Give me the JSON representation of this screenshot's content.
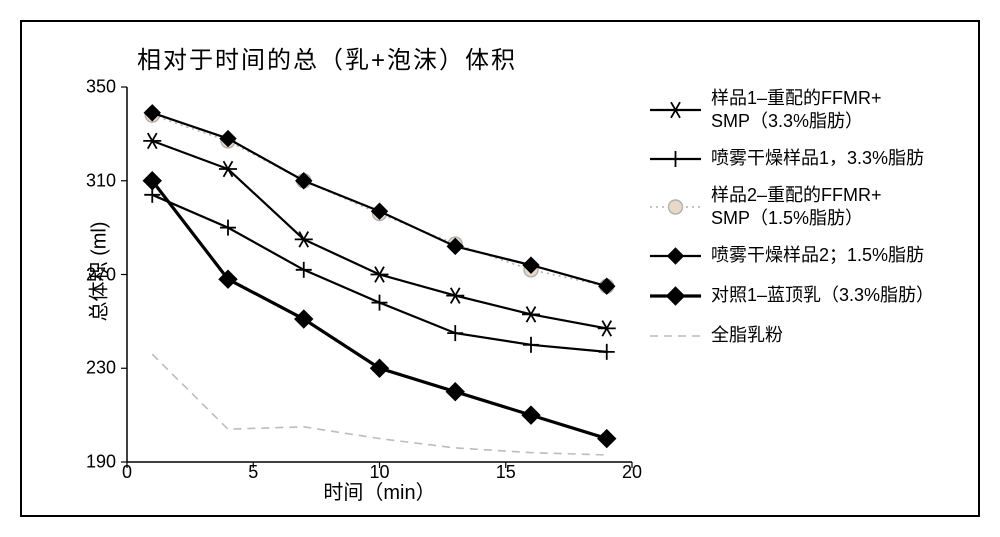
{
  "chart": {
    "type": "line",
    "title": "相对于时间的总（乳+泡沫）体积",
    "title_fontsize": 24,
    "xlabel": "时间（min）",
    "ylabel": "总体积 (ml)",
    "label_fontsize": 20,
    "tick_fontsize": 18,
    "background_color": "#ffffff",
    "border_color": "#000000",
    "xlim": [
      0,
      20
    ],
    "ylim": [
      190,
      350
    ],
    "xticks": [
      0,
      5,
      10,
      15,
      20
    ],
    "yticks": [
      190,
      230,
      270,
      310,
      350
    ],
    "xtick_labels": [
      "0",
      "5",
      "10",
      "15",
      "20"
    ],
    "ytick_labels": [
      "190",
      "230",
      "270",
      "310",
      "350"
    ],
    "grid": false,
    "tick_len": 6,
    "series": [
      {
        "label": "样品1–重配的FFMR+\nSMP（3.3%脂肪）",
        "marker": "asterisk",
        "line_dash": "none",
        "color": "#000000",
        "line_width": 2.2,
        "marker_size": 9,
        "x": [
          1,
          4,
          7,
          10,
          13,
          16,
          19
        ],
        "y": [
          327,
          315,
          285,
          270,
          261,
          253,
          247
        ]
      },
      {
        "label": "喷雾干燥样品1，3.3%脂肪",
        "marker": "plus",
        "line_dash": "none",
        "color": "#000000",
        "line_width": 2.2,
        "marker_size": 8,
        "x": [
          1,
          4,
          7,
          10,
          13,
          16,
          19
        ],
        "y": [
          304,
          290,
          272,
          258,
          245,
          240,
          237
        ]
      },
      {
        "label": "样品2–重配的FFMR+\nSMP（1.5%脂肪）",
        "marker": "circle-open",
        "line_dash": "dot",
        "color": "#b0b0b0",
        "line_width": 1.6,
        "marker_size": 7,
        "marker_fill": "#e8d8c8",
        "x": [
          1,
          4,
          7,
          10,
          13,
          16,
          19
        ],
        "y": [
          338,
          327,
          310,
          296,
          283,
          272,
          265
        ]
      },
      {
        "label": "喷雾干燥样品2；1.5%脂肪",
        "marker": "diamond",
        "line_dash": "none",
        "color": "#000000",
        "line_width": 2.2,
        "marker_size": 8,
        "x": [
          1,
          4,
          7,
          10,
          13,
          16,
          19
        ],
        "y": [
          339,
          328,
          310,
          297,
          282,
          274,
          265
        ]
      },
      {
        "label": "对照1–蓝顶乳（3.3%脂肪）",
        "marker": "diamond",
        "line_dash": "none",
        "color": "#000000",
        "line_width": 3.2,
        "marker_size": 9,
        "x": [
          1,
          4,
          7,
          10,
          13,
          16,
          19
        ],
        "y": [
          310,
          268,
          251,
          230,
          220,
          210,
          200
        ]
      },
      {
        "label": "全脂乳粉",
        "marker": "none",
        "line_dash": "dash",
        "color": "#bcbcbc",
        "line_width": 1.6,
        "x": [
          1,
          4,
          7,
          10,
          13,
          16,
          19
        ],
        "y": [
          236,
          204,
          205,
          200,
          196,
          194,
          193
        ]
      }
    ],
    "legend_fontsize": 18,
    "legend_swatch_width": 55
  }
}
